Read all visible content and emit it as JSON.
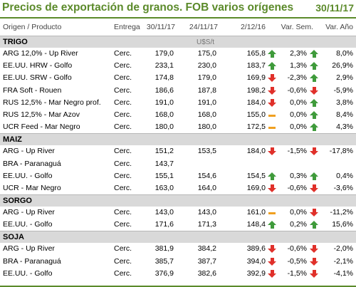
{
  "title": "Precios de exportación de granos. FOB varios orígenes",
  "date": "30/11/17",
  "header": {
    "producto": "Origen / Producto",
    "entrega": "Entrega",
    "c1": "30/11/17",
    "c2": "24/11/17",
    "c3": "2/12/16",
    "sem": "Var. Sem.",
    "anio": "Var. Año"
  },
  "colors": {
    "accent": "#5b8a2a",
    "up": "#3f9b3b",
    "down": "#e0302a",
    "flat": "#f0a020",
    "section_bg": "#d9d9d9"
  },
  "sections": [
    {
      "name": "TRIGO",
      "unit": "U$S/t",
      "rows": [
        {
          "prod": "ARG 12,0% - Up River",
          "ent": "Cerc.",
          "v1": "179,0",
          "v2": "175,0",
          "v3": "165,8",
          "i3": "up",
          "sem": "2,3%",
          "isem": "up",
          "anio": "8,0%"
        },
        {
          "prod": "EE.UU. HRW - Golfo",
          "ent": "Cerc.",
          "v1": "233,1",
          "v2": "230,0",
          "v3": "183,7",
          "i3": "up",
          "sem": "1,3%",
          "isem": "up",
          "anio": "26,9%"
        },
        {
          "prod": "EE.UU. SRW - Golfo",
          "ent": "Cerc.",
          "v1": "174,8",
          "v2": "179,0",
          "v3": "169,9",
          "i3": "down",
          "sem": "-2,3%",
          "isem": "up",
          "anio": "2,9%"
        },
        {
          "prod": "FRA Soft - Rouen",
          "ent": "Cerc.",
          "v1": "186,6",
          "v2": "187,8",
          "v3": "198,2",
          "i3": "down",
          "sem": "-0,6%",
          "isem": "down",
          "anio": "-5,9%"
        },
        {
          "prod": "RUS 12,5% - Mar Negro prof.",
          "ent": "Cerc.",
          "v1": "191,0",
          "v2": "191,0",
          "v3": "184,0",
          "i3": "down",
          "sem": "0,0%",
          "isem": "up",
          "anio": "3,8%"
        },
        {
          "prod": "RUS 12,5% - Mar Azov",
          "ent": "Cerc.",
          "v1": "168,0",
          "v2": "168,0",
          "v3": "155,0",
          "i3": "flat",
          "sem": "0,0%",
          "isem": "up",
          "anio": "8,4%"
        },
        {
          "prod": "UCR Feed - Mar Negro",
          "ent": "Cerc.",
          "v1": "180,0",
          "v2": "180,0",
          "v3": "172,5",
          "i3": "flat",
          "sem": "0,0%",
          "isem": "up",
          "anio": "4,3%"
        }
      ]
    },
    {
      "name": "MAIZ",
      "unit": "",
      "rows": [
        {
          "prod": "ARG - Up River",
          "ent": "Cerc.",
          "v1": "151,2",
          "v2": "153,5",
          "v3": "184,0",
          "i3": "down",
          "sem": "-1,5%",
          "isem": "down",
          "anio": "-17,8%"
        },
        {
          "prod": "BRA - Paranaguá",
          "ent": "Cerc.",
          "v1": "143,7",
          "v2": "",
          "v3": "",
          "i3": "",
          "sem": "",
          "isem": "",
          "anio": ""
        },
        {
          "prod": "EE.UU. - Golfo",
          "ent": "Cerc.",
          "v1": "155,1",
          "v2": "154,6",
          "v3": "154,5",
          "i3": "up",
          "sem": "0,3%",
          "isem": "up",
          "anio": "0,4%"
        },
        {
          "prod": "UCR - Mar Negro",
          "ent": "Cerc.",
          "v1": "163,0",
          "v2": "164,0",
          "v3": "169,0",
          "i3": "down",
          "sem": "-0,6%",
          "isem": "down",
          "anio": "-3,6%"
        }
      ]
    },
    {
      "name": "SORGO",
      "unit": "",
      "rows": [
        {
          "prod": "ARG - Up River",
          "ent": "Cerc.",
          "v1": "143,0",
          "v2": "143,0",
          "v3": "161,0",
          "i3": "flat",
          "sem": "0,0%",
          "isem": "down",
          "anio": "-11,2%"
        },
        {
          "prod": "EE.UU. - Golfo",
          "ent": "Cerc.",
          "v1": "171,6",
          "v2": "171,3",
          "v3": "148,4",
          "i3": "up",
          "sem": "0,2%",
          "isem": "up",
          "anio": "15,6%"
        }
      ]
    },
    {
      "name": "SOJA",
      "unit": "",
      "rows": [
        {
          "prod": "ARG - Up River",
          "ent": "Cerc.",
          "v1": "381,9",
          "v2": "384,2",
          "v3": "389,6",
          "i3": "down",
          "sem": "-0,6%",
          "isem": "down",
          "anio": "-2,0%"
        },
        {
          "prod": "BRA - Paranaguá",
          "ent": "Cerc.",
          "v1": "385,7",
          "v2": "387,7",
          "v3": "394,0",
          "i3": "down",
          "sem": "-0,5%",
          "isem": "down",
          "anio": "-2,1%"
        },
        {
          "prod": "EE.UU. - Golfo",
          "ent": "Cerc.",
          "v1": "376,9",
          "v2": "382,6",
          "v3": "392,9",
          "i3": "down",
          "sem": "-1,5%",
          "isem": "down",
          "anio": "-4,1%"
        }
      ]
    }
  ]
}
